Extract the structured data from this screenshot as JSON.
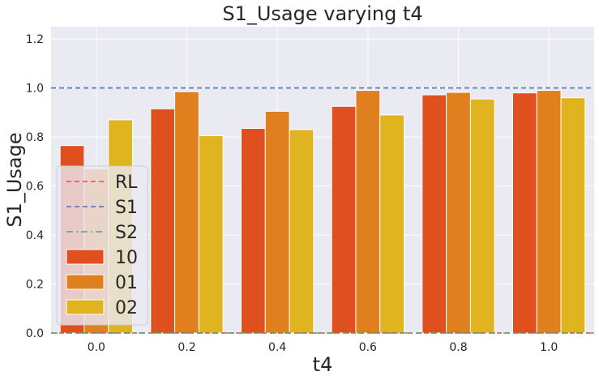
{
  "chart_data": {
    "type": "bar",
    "title": "S1_Usage varying t4",
    "xlabel": "t4",
    "ylabel": "S1_Usage",
    "ylim": [
      0,
      1.25
    ],
    "yticks": [
      "0.0",
      "0.2",
      "0.4",
      "0.6",
      "0.8",
      "1.0",
      "1.2"
    ],
    "categories": [
      "0.0",
      "0.2",
      "0.4",
      "0.6",
      "0.8",
      "1.0"
    ],
    "series": [
      {
        "name": "10",
        "color": "#e0501e",
        "values": [
          0.765,
          0.915,
          0.835,
          0.925,
          0.972,
          0.98
        ]
      },
      {
        "name": "01",
        "color": "#e07f1e",
        "values": [
          0.67,
          0.985,
          0.905,
          0.99,
          0.982,
          0.99
        ]
      },
      {
        "name": "02",
        "color": "#e0b41e",
        "values": [
          0.87,
          0.805,
          0.83,
          0.89,
          0.955,
          0.96
        ]
      }
    ],
    "reference_lines": [
      {
        "name": "RL",
        "color": "#d9534f",
        "style": "dashed",
        "value": 0.0
      },
      {
        "name": "S1",
        "color": "#4a72b5",
        "style": "dashed",
        "value": 1.0
      },
      {
        "name": "S2",
        "color": "#5aa469",
        "style": "dashdot",
        "value": 0.0
      }
    ],
    "grid": true,
    "legend_position": "lower-left",
    "colors": {
      "background": "#eaeaf2",
      "grid": "#ffffff"
    }
  }
}
